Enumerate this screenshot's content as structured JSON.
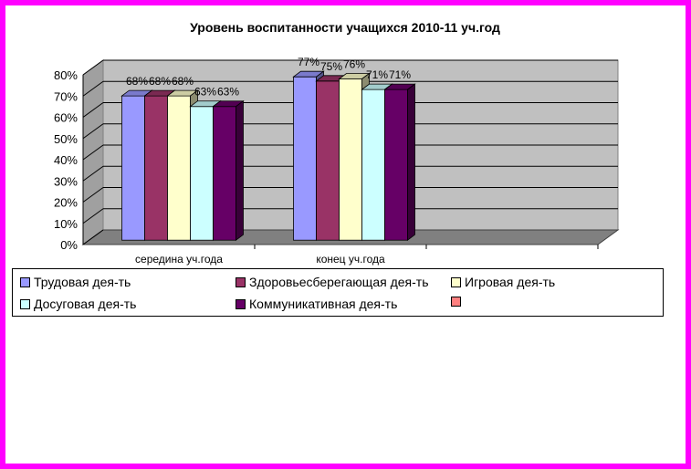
{
  "chart_data": {
    "type": "bar",
    "title": "Уровень воспитанности учащихся 2010-11 уч.год",
    "categories": [
      "середина уч.года",
      "конец уч.года",
      ""
    ],
    "series": [
      {
        "name": "Трудовая дея-ть",
        "color": "#9999ff",
        "values": [
          68,
          77,
          null
        ]
      },
      {
        "name": "Здоровьесберегающая дея-ть",
        "color": "#993366",
        "values": [
          68,
          75,
          null
        ]
      },
      {
        "name": "Игровая дея-ть",
        "color": "#ffffcc",
        "values": [
          68,
          76,
          null
        ]
      },
      {
        "name": "Досуговая дея-ть",
        "color": "#ccffff",
        "values": [
          63,
          71,
          null
        ]
      },
      {
        "name": "Коммуникативная дея-ть",
        "color": "#660066",
        "values": [
          63,
          71,
          null
        ]
      },
      {
        "name": "",
        "color": "#ff8080",
        "values": [
          null,
          null,
          null
        ]
      }
    ],
    "data_labels": [
      [
        "68%",
        "77%"
      ],
      [
        "68%",
        "75%"
      ],
      [
        "68%",
        "76%"
      ],
      [
        "63%",
        "71%"
      ],
      [
        "63%",
        "71%"
      ]
    ],
    "y_ticks": [
      "0%",
      "10%",
      "20%",
      "30%",
      "40%",
      "50%",
      "60%",
      "70%",
      "80%"
    ],
    "ylim": [
      0,
      80
    ],
    "grid": true,
    "legend_position": "bottom",
    "colors": {
      "frame": "#ff00ff",
      "wall": "#c0c0c0",
      "floor": "#808080"
    }
  }
}
